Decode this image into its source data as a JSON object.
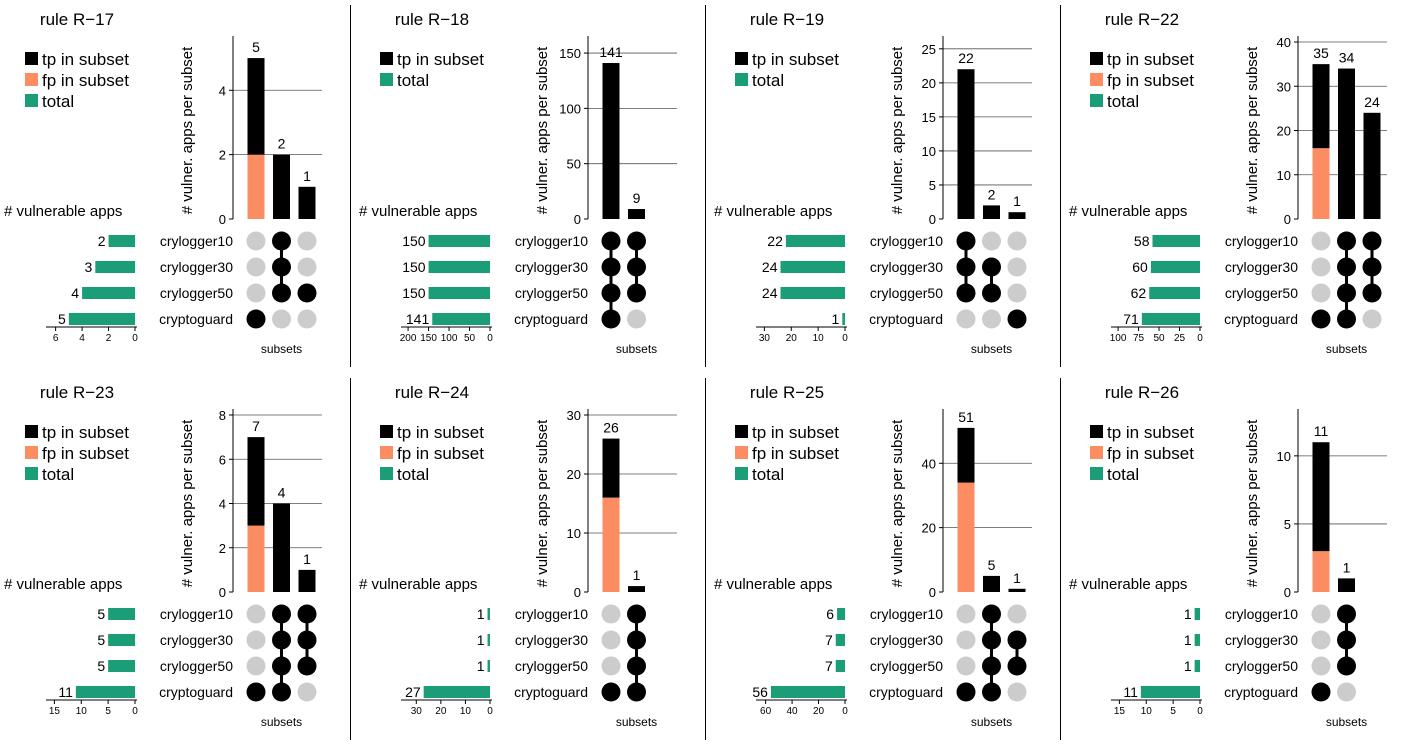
{
  "colors": {
    "tp": "#000000",
    "fp": "#fc8d62",
    "total": "#1b9e77",
    "dot_on": "#000000",
    "dot_off": "#cccccc",
    "grid": "#555555"
  },
  "legend": {
    "tp": "tp in subset",
    "fp": "fp in subset",
    "total": "total"
  },
  "labels": {
    "vuln_apps": "# vulnerable apps",
    "ylabel": "# vulner. apps per subset",
    "subsets": "subsets"
  },
  "set_names": [
    "crylogger10",
    "crylogger30",
    "crylogger50",
    "cryptoguard"
  ],
  "chart_data": [
    {
      "type": "bar",
      "title": "rule R−17",
      "ylim": [
        0,
        5.5
      ],
      "yticks": [
        0,
        2,
        4
      ],
      "totals": [
        2,
        3,
        4,
        5
      ],
      "total_lim": [
        0,
        6.5
      ],
      "total_ticks": [
        6,
        4,
        2,
        0
      ],
      "show_fp_legend": true,
      "subsets": [
        {
          "members": [
            3
          ],
          "tp": 3,
          "fp": 2,
          "total": 5
        },
        {
          "members": [
            0,
            1,
            2
          ],
          "tp": 2,
          "fp": 0,
          "total": 2
        },
        {
          "members": [
            2
          ],
          "tp": 1,
          "fp": 0,
          "total": 1
        }
      ]
    },
    {
      "type": "bar",
      "title": "rule R−18",
      "ylim": [
        0,
        160
      ],
      "yticks": [
        0,
        50,
        100,
        150
      ],
      "totals": [
        150,
        150,
        150,
        141
      ],
      "total_lim": [
        0,
        210
      ],
      "total_ticks": [
        200,
        150,
        100,
        50,
        0
      ],
      "show_fp_legend": false,
      "subsets": [
        {
          "members": [
            0,
            1,
            2,
            3
          ],
          "tp": 141,
          "fp": 0,
          "total": 141
        },
        {
          "members": [
            0,
            1,
            2
          ],
          "tp": 9,
          "fp": 0,
          "total": 9
        }
      ]
    },
    {
      "type": "bar",
      "title": "rule R−19",
      "ylim": [
        0,
        26
      ],
      "yticks": [
        0,
        5,
        10,
        15,
        20,
        25
      ],
      "totals": [
        22,
        24,
        24,
        1
      ],
      "total_lim": [
        0,
        32
      ],
      "total_ticks": [
        30,
        20,
        10,
        0
      ],
      "show_fp_legend": false,
      "subsets": [
        {
          "members": [
            0,
            1,
            2
          ],
          "tp": 22,
          "fp": 0,
          "total": 22
        },
        {
          "members": [
            1,
            2
          ],
          "tp": 2,
          "fp": 0,
          "total": 2
        },
        {
          "members": [
            3
          ],
          "tp": 1,
          "fp": 0,
          "total": 1
        }
      ]
    },
    {
      "type": "bar",
      "title": "rule R−22",
      "ylim": [
        0,
        40
      ],
      "yticks": [
        0,
        10,
        20,
        30,
        40
      ],
      "totals": [
        58,
        60,
        62,
        71
      ],
      "total_lim": [
        0,
        105
      ],
      "total_ticks": [
        100,
        75,
        50,
        25,
        0
      ],
      "show_fp_legend": true,
      "subsets": [
        {
          "members": [
            3
          ],
          "tp": 19,
          "fp": 16,
          "total": 35
        },
        {
          "members": [
            0,
            1,
            2,
            3
          ],
          "tp": 34,
          "fp": 0,
          "total": 34
        },
        {
          "members": [
            0,
            1,
            2
          ],
          "tp": 24,
          "fp": 0,
          "total": 24
        }
      ]
    },
    {
      "type": "bar",
      "title": "rule R−23",
      "ylim": [
        0,
        8
      ],
      "yticks": [
        0,
        2,
        4,
        6,
        8
      ],
      "totals": [
        5,
        5,
        5,
        11
      ],
      "total_lim": [
        0,
        16
      ],
      "total_ticks": [
        15,
        10,
        5,
        0
      ],
      "show_fp_legend": true,
      "subsets": [
        {
          "members": [
            3
          ],
          "tp": 4,
          "fp": 3,
          "total": 7
        },
        {
          "members": [
            0,
            1,
            2,
            3
          ],
          "tp": 4,
          "fp": 0,
          "total": 4
        },
        {
          "members": [
            0,
            1,
            2
          ],
          "tp": 1,
          "fp": 0,
          "total": 1
        }
      ]
    },
    {
      "type": "bar",
      "title": "rule R−24",
      "ylim": [
        0,
        30
      ],
      "yticks": [
        0,
        10,
        20,
        30
      ],
      "totals": [
        1,
        1,
        1,
        27
      ],
      "total_lim": [
        0,
        35
      ],
      "total_ticks": [
        30,
        20,
        10,
        0
      ],
      "show_fp_legend": true,
      "subsets": [
        {
          "members": [
            3
          ],
          "tp": 10,
          "fp": 16,
          "total": 26
        },
        {
          "members": [
            0,
            1,
            2,
            3
          ],
          "tp": 1,
          "fp": 0,
          "total": 1
        }
      ]
    },
    {
      "type": "bar",
      "title": "rule R−25",
      "ylim": [
        0,
        55
      ],
      "yticks": [
        0,
        20,
        40
      ],
      "totals": [
        6,
        7,
        7,
        56
      ],
      "total_lim": [
        0,
        65
      ],
      "total_ticks": [
        60,
        40,
        20,
        0
      ],
      "show_fp_legend": true,
      "subsets": [
        {
          "members": [
            3
          ],
          "tp": 17,
          "fp": 34,
          "total": 51
        },
        {
          "members": [
            0,
            1,
            2,
            3
          ],
          "tp": 5,
          "fp": 0,
          "total": 5
        },
        {
          "members": [
            1,
            2
          ],
          "tp": 1,
          "fp": 0,
          "total": 1
        }
      ]
    },
    {
      "type": "bar",
      "title": "rule R−26",
      "ylim": [
        0,
        13
      ],
      "yticks": [
        0,
        5,
        10
      ],
      "totals": [
        1,
        1,
        1,
        11
      ],
      "total_lim": [
        0,
        16
      ],
      "total_ticks": [
        15,
        10,
        5,
        0
      ],
      "show_fp_legend": true,
      "subsets": [
        {
          "members": [
            3
          ],
          "tp": 8,
          "fp": 3,
          "total": 11
        },
        {
          "members": [
            0,
            1,
            2
          ],
          "tp": 1,
          "fp": 0,
          "total": 1
        }
      ]
    }
  ]
}
